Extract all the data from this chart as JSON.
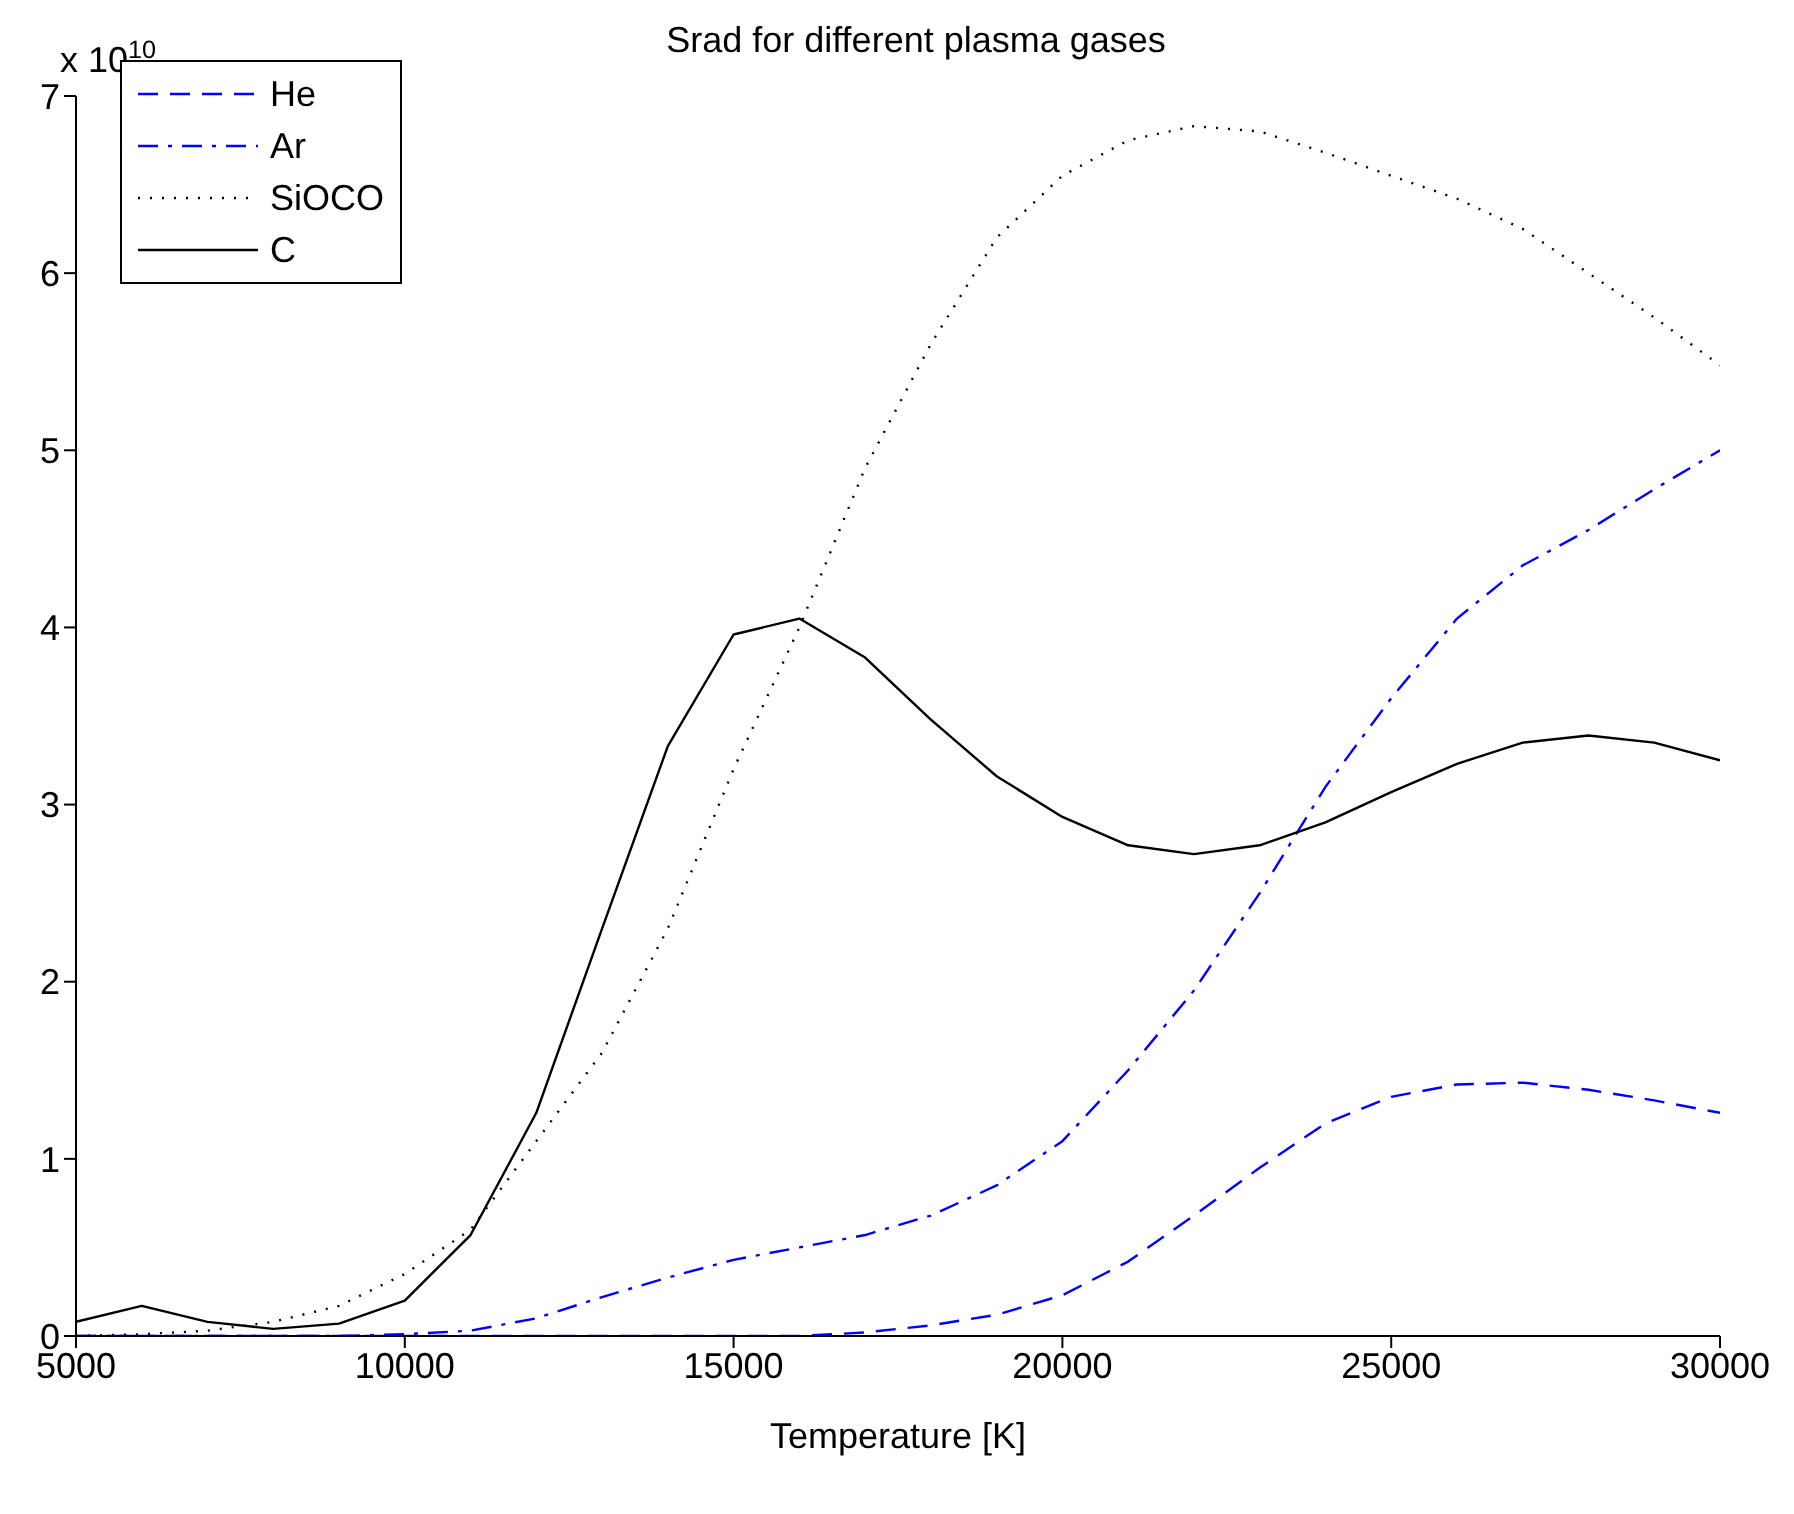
{
  "chart_data": {
    "type": "line",
    "title": "Srad for different plasma gases",
    "xlabel": "Temperature [K]",
    "annotations": [
      "x 10$^{10}$"
    ],
    "x": [
      5000,
      6000,
      7000,
      8000,
      9000,
      10000,
      11000,
      12000,
      13000,
      14000,
      15000,
      16000,
      17000,
      18000,
      19000,
      20000,
      21000,
      22000,
      23000,
      24000,
      25000,
      26000,
      27000,
      28000,
      29000,
      30000
    ],
    "series": [
      {
        "name": "He",
        "color": "#0000ff",
        "line_style": "dashed",
        "values": [
          0,
          0,
          0,
          0,
          0,
          0,
          0,
          0,
          0,
          0,
          0,
          0,
          0.02,
          0.06,
          0.12,
          0.23,
          0.42,
          0.68,
          0.95,
          1.2,
          1.35,
          1.42,
          1.43,
          1.39,
          1.33,
          1.26
        ]
      },
      {
        "name": "Ar",
        "color": "#0000ff",
        "line_style": "dashdot",
        "values": [
          0,
          0,
          0,
          0,
          0,
          0.01,
          0.03,
          0.1,
          0.22,
          0.33,
          0.43,
          0.5,
          0.57,
          0.68,
          0.85,
          1.1,
          1.5,
          1.95,
          2.5,
          3.1,
          3.6,
          4.05,
          4.35,
          4.55,
          4.78,
          5.0
        ]
      },
      {
        "name": "SiOCO",
        "color": "#000000",
        "line_style": "dotted",
        "values": [
          0,
          0.01,
          0.03,
          0.08,
          0.17,
          0.35,
          0.6,
          1.1,
          1.6,
          2.3,
          3.2,
          4.0,
          4.9,
          5.6,
          6.2,
          6.55,
          6.75,
          6.83,
          6.8,
          6.68,
          6.55,
          6.42,
          6.25,
          6.0,
          5.75,
          5.48
        ]
      },
      {
        "name": "C",
        "color": "#000000",
        "line_style": "solid",
        "values": [
          0.08,
          0.17,
          0.08,
          0.04,
          0.07,
          0.2,
          0.57,
          1.26,
          2.3,
          3.33,
          3.96,
          4.05,
          3.83,
          3.48,
          3.16,
          2.93,
          2.77,
          2.72,
          2.77,
          2.9,
          3.07,
          3.23,
          3.35,
          3.39,
          3.35,
          3.25
        ]
      }
    ],
    "xlim": [
      5000,
      30000
    ],
    "xticks": [
      5000,
      10000,
      15000,
      20000,
      25000,
      30000
    ],
    "ylim": [
      0,
      7
    ],
    "yticks": [
      0,
      1,
      2,
      3,
      4,
      5,
      6,
      7
    ],
    "grid": false,
    "legend": "top left",
    "marker": "none"
  }
}
